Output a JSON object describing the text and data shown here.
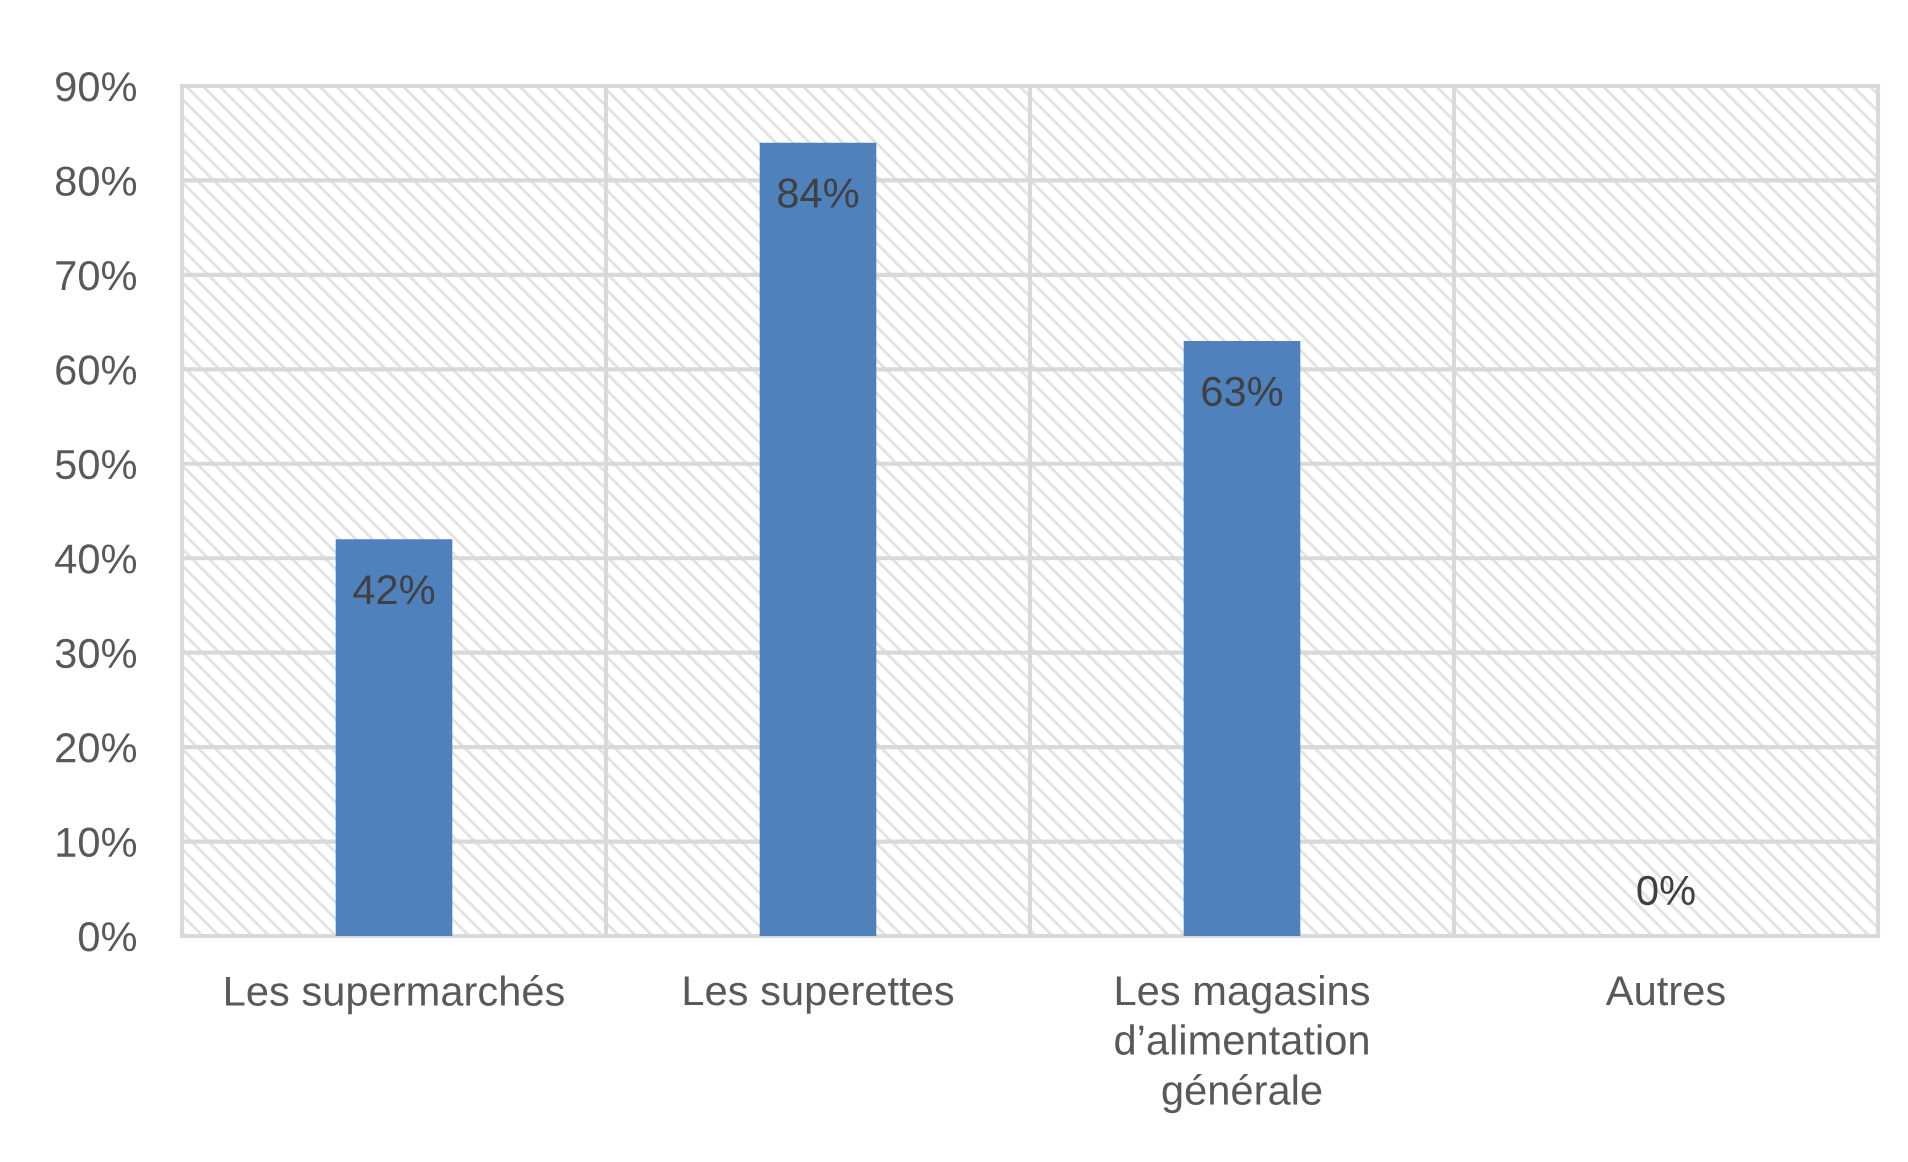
{
  "chart_data": {
    "type": "bar",
    "categories": [
      "Les supermarchés",
      "Les superettes",
      "Les magasins d’alimentation générale",
      "Autres"
    ],
    "values": [
      42,
      84,
      63,
      0
    ],
    "color": "#4f81bd",
    "value_labels": [
      "42%",
      "84%",
      "63%",
      "0%"
    ],
    "ylim": [
      0,
      90
    ],
    "yticks": [
      {
        "value": 0,
        "label": "0%"
      },
      {
        "value": 10,
        "label": "10%"
      },
      {
        "value": 20,
        "label": "20%"
      },
      {
        "value": 30,
        "label": "30%"
      },
      {
        "value": 40,
        "label": "40%"
      },
      {
        "value": 50,
        "label": "50%"
      },
      {
        "value": 60,
        "label": "60%"
      },
      {
        "value": 70,
        "label": "70%"
      },
      {
        "value": 80,
        "label": "80%"
      },
      {
        "value": 90,
        "label": "90%"
      }
    ],
    "grid": true
  }
}
